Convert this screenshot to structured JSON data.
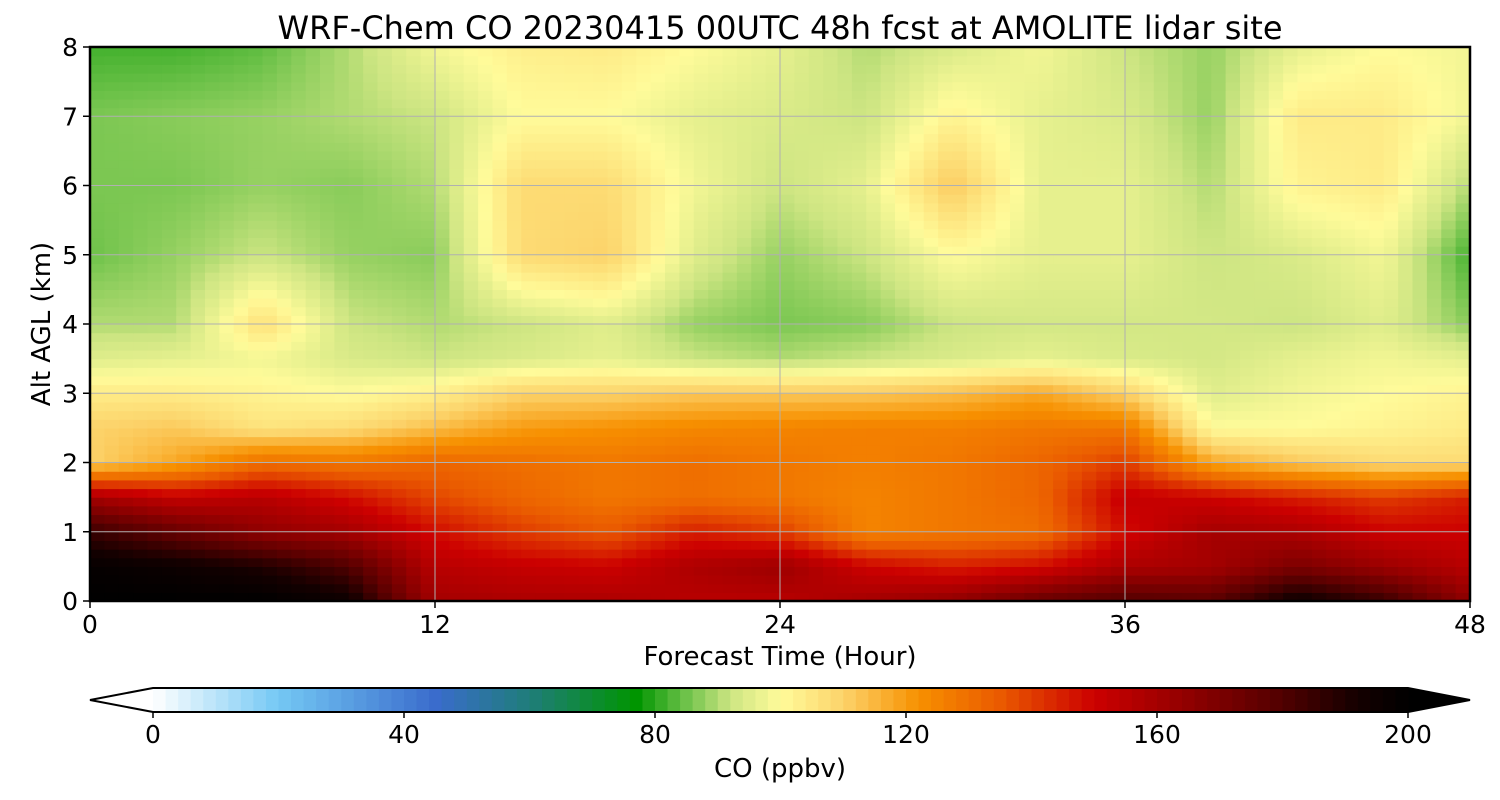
{
  "chart_data": {
    "type": "heatmap",
    "title": "WRF-Chem CO  20230415 00UTC 48h fcst at AMOLITE lidar site",
    "xlabel": "Forecast Time (Hour)",
    "ylabel": "Alt AGL (km)",
    "xlim": [
      0,
      48
    ],
    "ylim": [
      0,
      8
    ],
    "xticks": [
      0,
      12,
      24,
      36,
      48
    ],
    "yticks": [
      0,
      1,
      2,
      3,
      4,
      5,
      6,
      7,
      8
    ],
    "grid": true,
    "z_units": "ppbv",
    "x": [
      0,
      3,
      6,
      9,
      12,
      15,
      18,
      21,
      24,
      27,
      30,
      33,
      36,
      39,
      42,
      45,
      48
    ],
    "y": [
      0,
      0.5,
      1,
      1.5,
      2,
      2.5,
      3,
      3.5,
      4,
      5,
      6,
      7,
      8
    ],
    "z": [
      [
        200,
        200,
        200,
        195,
        160,
        158,
        158,
        155,
        155,
        160,
        165,
        175,
        180,
        178,
        195,
        185,
        165
      ],
      [
        198,
        195,
        190,
        180,
        155,
        152,
        150,
        158,
        162,
        150,
        145,
        148,
        158,
        160,
        170,
        162,
        155
      ],
      [
        185,
        175,
        165,
        160,
        148,
        140,
        135,
        145,
        140,
        125,
        128,
        130,
        148,
        160,
        158,
        150,
        150
      ],
      [
        160,
        152,
        155,
        148,
        138,
        132,
        128,
        130,
        128,
        125,
        128,
        132,
        152,
        150,
        145,
        140,
        145
      ],
      [
        110,
        118,
        130,
        128,
        132,
        130,
        128,
        130,
        128,
        126,
        128,
        132,
        140,
        118,
        112,
        108,
        108
      ],
      [
        110,
        112,
        106,
        108,
        114,
        120,
        122,
        124,
        125,
        126,
        126,
        128,
        128,
        100,
        100,
        102,
        104
      ],
      [
        104,
        104,
        102,
        100,
        103,
        110,
        110,
        112,
        112,
        112,
        114,
        118,
        110,
        95,
        98,
        100,
        102
      ],
      [
        95,
        96,
        98,
        94,
        92,
        94,
        96,
        92,
        90,
        92,
        94,
        96,
        94,
        93,
        96,
        98,
        96
      ],
      [
        90,
        90,
        107,
        92,
        90,
        92,
        95,
        88,
        86,
        87,
        92,
        93,
        93,
        93,
        92,
        95,
        87
      ],
      [
        85,
        88,
        92,
        88,
        87,
        108,
        110,
        95,
        88,
        92,
        100,
        96,
        96,
        92,
        94,
        98,
        82
      ],
      [
        86,
        86,
        88,
        87,
        90,
        108,
        108,
        98,
        92,
        96,
        112,
        96,
        96,
        90,
        102,
        104,
        90
      ],
      [
        86,
        87,
        88,
        90,
        92,
        100,
        100,
        96,
        94,
        92,
        102,
        96,
        94,
        88,
        104,
        104,
        98
      ],
      [
        82,
        82,
        84,
        90,
        98,
        103,
        104,
        100,
        96,
        90,
        94,
        98,
        92,
        88,
        96,
        100,
        98
      ]
    ],
    "colorbar": {
      "label": "CO  (ppbv)",
      "min": 0,
      "max": 200,
      "ticks": [
        0,
        40,
        80,
        120,
        160,
        200
      ],
      "extend": "both",
      "stops": [
        {
          "v": 0,
          "c": "#ffffff"
        },
        {
          "v": 20,
          "c": "#74c8f4"
        },
        {
          "v": 45,
          "c": "#3a6ccc"
        },
        {
          "v": 60,
          "c": "#1f7d7a"
        },
        {
          "v": 77,
          "c": "#009500"
        },
        {
          "v": 85,
          "c": "#6ec24a"
        },
        {
          "v": 92,
          "c": "#cde582"
        },
        {
          "v": 100,
          "c": "#fffb9a"
        },
        {
          "v": 110,
          "c": "#fcd36a"
        },
        {
          "v": 122,
          "c": "#f79000"
        },
        {
          "v": 135,
          "c": "#ea5a00"
        },
        {
          "v": 150,
          "c": "#cc0000"
        },
        {
          "v": 162,
          "c": "#9c0000"
        },
        {
          "v": 178,
          "c": "#5a0000"
        },
        {
          "v": 192,
          "c": "#140000"
        },
        {
          "v": 200,
          "c": "#000000"
        }
      ]
    }
  }
}
